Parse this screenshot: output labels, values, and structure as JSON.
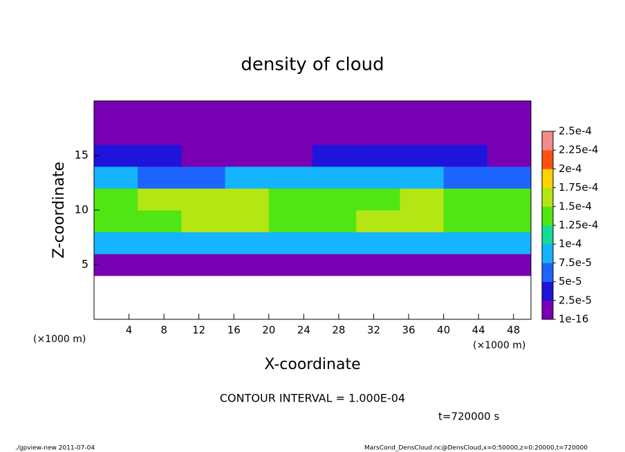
{
  "chart_data": {
    "type": "heatmap",
    "title": "density of cloud",
    "x_label": "X-coordinate",
    "y_label": "Z-coordinate",
    "y_unit": "(×1000 m)",
    "x_unit": "(×1000 m)",
    "annotation": "CONTOUR INTERVAL = 1.000E-04",
    "time_label": "t=720000 s",
    "footer_left": "./gpview-new  2011-07-04",
    "footer_right": "MarsCond_DensCloud.nc@DensCloud,x=0:50000,z=0:20000,t=720000",
    "xlim": [
      0,
      50
    ],
    "xticks": [
      4,
      8,
      12,
      16,
      20,
      24,
      28,
      32,
      36,
      40,
      44,
      48
    ],
    "ylim": [
      0,
      20
    ],
    "yticks": [
      5,
      10,
      15
    ],
    "x": [
      2.5,
      7.5,
      12.5,
      17.5,
      22.5,
      27.5,
      32.5,
      37.5,
      42.5,
      47.5
    ],
    "y": [
      1,
      3,
      5,
      7,
      9,
      11,
      13,
      15,
      17,
      19
    ],
    "z": [
      [
        null,
        null,
        null,
        null,
        null,
        null,
        null,
        null,
        null,
        null
      ],
      [
        null,
        null,
        null,
        null,
        null,
        null,
        null,
        null,
        null,
        null
      ],
      [
        2e-05,
        2e-05,
        2e-05,
        2e-05,
        2e-05,
        2e-05,
        2e-05,
        2e-05,
        2e-05,
        2e-05
      ],
      [
        8e-05,
        9e-05,
        0.0001,
        0.0001,
        9e-05,
        9e-05,
        9e-05,
        0.0001,
        9e-05,
        8e-05
      ],
      [
        0.00013,
        0.00015,
        0.00017,
        0.00016,
        0.00015,
        0.00015,
        0.00016,
        0.00017,
        0.00015,
        0.00013
      ],
      [
        0.00014,
        0.00016,
        0.00017,
        0.00016,
        0.00014,
        0.00015,
        0.00015,
        0.00016,
        0.00014,
        0.00014
      ],
      [
        8e-05,
        7e-05,
        6e-05,
        8e-05,
        9e-05,
        9e-05,
        8e-05,
        8e-05,
        7e-05,
        6e-05
      ],
      [
        3e-05,
        3e-05,
        2.5e-05,
        2.5e-05,
        2.5e-05,
        3e-05,
        3e-05,
        3e-05,
        3e-05,
        2.5e-05
      ],
      [
        1e-05,
        1e-05,
        1.5e-05,
        2e-05,
        2e-05,
        2e-05,
        1.5e-05,
        1e-05,
        1e-05,
        1e-05
      ],
      [
        1e-06,
        1e-06,
        1e-06,
        1e-06,
        1e-06,
        1e-06,
        1e-06,
        1e-06,
        1e-06,
        1e-06
      ]
    ],
    "colorbar_ticks": [
      {
        "value": 1e-16,
        "label": "1e-16"
      },
      {
        "value": 2.5e-05,
        "label": "2.5e-5"
      },
      {
        "value": 5e-05,
        "label": "5e-5"
      },
      {
        "value": 7.5e-05,
        "label": "7.5e-5"
      },
      {
        "value": 0.0001,
        "label": "1e-4"
      },
      {
        "value": 0.000125,
        "label": "1.25e-4"
      },
      {
        "value": 0.00015,
        "label": "1.5e-4"
      },
      {
        "value": 0.000175,
        "label": "1.75e-4"
      },
      {
        "value": 0.0002,
        "label": "2e-4"
      },
      {
        "value": 0.000225,
        "label": "2.25e-4"
      },
      {
        "value": 0.00025,
        "label": "2.5e-4"
      }
    ],
    "colors": [
      "#7800b4",
      "#1e14dc",
      "#1e64ff",
      "#14b4ff",
      "#14dc96",
      "#50e614",
      "#b4e614",
      "#ffd200",
      "#ff5014",
      "#f08c8c"
    ]
  }
}
